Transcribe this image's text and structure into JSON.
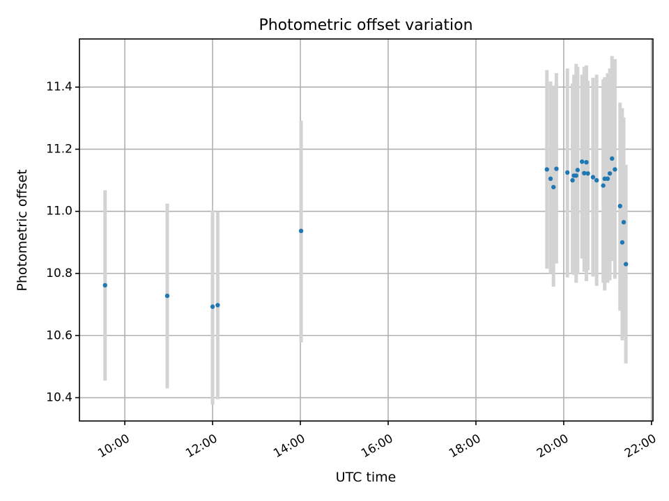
{
  "chart_data": {
    "type": "scatter",
    "title": "Photometric offset variation",
    "xlabel": "UTC time",
    "ylabel": "Photometric offset",
    "x_type": "time",
    "xlim": [
      "08:58",
      "22:02"
    ],
    "ylim": [
      10.325,
      11.555
    ],
    "x_ticks": [
      "10:00",
      "12:00",
      "14:00",
      "16:00",
      "18:00",
      "20:00",
      "22:00"
    ],
    "y_ticks": [
      10.4,
      10.6,
      10.8,
      11.0,
      11.2,
      11.4
    ],
    "y_tick_labels": [
      "10.4",
      "10.6",
      "10.8",
      "11.0",
      "11.2",
      "11.4"
    ],
    "grid": true,
    "point_color": "#1f77b4",
    "errorbar_color": "#d3d3d3",
    "series": [
      {
        "points": [
          {
            "x": "09:33",
            "y": 10.762,
            "ylow": 10.455,
            "yhigh": 11.068
          },
          {
            "x": "10:58",
            "y": 10.728,
            "ylow": 10.43,
            "yhigh": 11.025
          },
          {
            "x": "12:00",
            "y": 10.693,
            "ylow": 10.378,
            "yhigh": 11.003
          },
          {
            "x": "12:07",
            "y": 10.698,
            "ylow": 10.395,
            "yhigh": 11.0
          },
          {
            "x": "14:01",
            "y": 10.937,
            "ylow": 10.578,
            "yhigh": 11.292
          },
          {
            "x": "19:37",
            "y": 11.135,
            "ylow": 10.815,
            "yhigh": 11.455
          },
          {
            "x": "19:42",
            "y": 11.105,
            "ylow": 10.8,
            "yhigh": 11.418
          },
          {
            "x": "19:46",
            "y": 11.078,
            "ylow": 10.757,
            "yhigh": 11.405
          },
          {
            "x": "19:50",
            "y": 11.137,
            "ylow": 10.832,
            "yhigh": 11.445
          },
          {
            "x": "20:05",
            "y": 11.125,
            "ylow": 10.787,
            "yhigh": 11.46
          },
          {
            "x": "20:12",
            "y": 11.1,
            "ylow": 10.8,
            "yhigh": 11.412
          },
          {
            "x": "20:14",
            "y": 11.115,
            "ylow": 10.795,
            "yhigh": 11.44
          },
          {
            "x": "20:17",
            "y": 11.115,
            "ylow": 10.77,
            "yhigh": 11.475
          },
          {
            "x": "20:19",
            "y": 11.133,
            "ylow": 10.8,
            "yhigh": 11.465
          },
          {
            "x": "20:25",
            "y": 11.16,
            "ylow": 10.848,
            "yhigh": 11.44
          },
          {
            "x": "20:28",
            "y": 11.123,
            "ylow": 10.805,
            "yhigh": 11.465
          },
          {
            "x": "20:31",
            "y": 11.158,
            "ylow": 10.775,
            "yhigh": 11.47
          },
          {
            "x": "20:33",
            "y": 11.122,
            "ylow": 10.81,
            "yhigh": 11.42
          },
          {
            "x": "20:40",
            "y": 11.11,
            "ylow": 10.79,
            "yhigh": 11.43
          },
          {
            "x": "20:45",
            "y": 11.1,
            "ylow": 10.76,
            "yhigh": 11.44
          },
          {
            "x": "20:54",
            "y": 11.083,
            "ylow": 10.77,
            "yhigh": 11.425
          },
          {
            "x": "20:56",
            "y": 11.105,
            "ylow": 10.745,
            "yhigh": 11.432
          },
          {
            "x": "21:00",
            "y": 11.105,
            "ylow": 10.77,
            "yhigh": 11.445
          },
          {
            "x": "21:03",
            "y": 11.122,
            "ylow": 10.778,
            "yhigh": 11.46
          },
          {
            "x": "21:06",
            "y": 11.17,
            "ylow": 10.84,
            "yhigh": 11.5
          },
          {
            "x": "21:10",
            "y": 11.135,
            "ylow": 10.783,
            "yhigh": 11.49
          },
          {
            "x": "21:17",
            "y": 11.017,
            "ylow": 10.68,
            "yhigh": 11.35
          },
          {
            "x": "21:20",
            "y": 10.9,
            "ylow": 10.585,
            "yhigh": 11.332
          },
          {
            "x": "21:22",
            "y": 10.965,
            "ylow": 10.605,
            "yhigh": 11.302
          },
          {
            "x": "21:25",
            "y": 10.83,
            "ylow": 10.51,
            "yhigh": 11.15
          }
        ]
      }
    ]
  }
}
